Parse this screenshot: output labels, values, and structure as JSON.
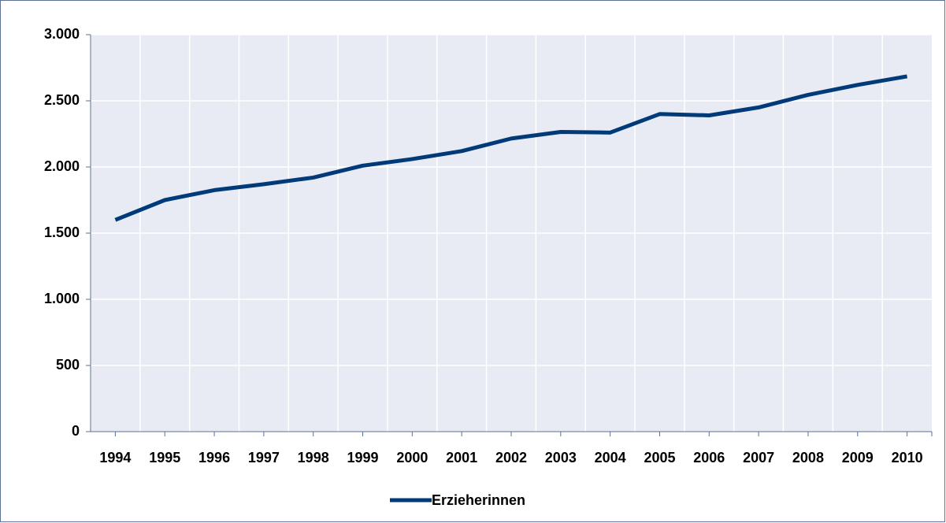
{
  "chart_data": {
    "type": "line",
    "categories": [
      "1994",
      "1995",
      "1996",
      "1997",
      "1998",
      "1999",
      "2000",
      "2001",
      "2002",
      "2003",
      "2004",
      "2005",
      "2006",
      "2007",
      "2008",
      "2009",
      "2010"
    ],
    "series": [
      {
        "name": "Erzieherinnen",
        "color": "#003a78",
        "values": [
          1600,
          1750,
          1825,
          1870,
          1920,
          2010,
          2060,
          2120,
          2215,
          2265,
          2260,
          2400,
          2390,
          2450,
          2545,
          2620,
          2685
        ]
      }
    ],
    "ylim": [
      0,
      3000
    ],
    "yticks": [
      0,
      500,
      {
        "value": 1000,
        "label": "1.000"
      },
      {
        "value": 1500,
        "label": "1.500"
      },
      {
        "value": 2000,
        "label": "2.000"
      },
      {
        "value": 2500,
        "label": "2.500"
      },
      {
        "value": 3000,
        "label": "3.000"
      }
    ],
    "grid": true,
    "legend": "bottom"
  }
}
